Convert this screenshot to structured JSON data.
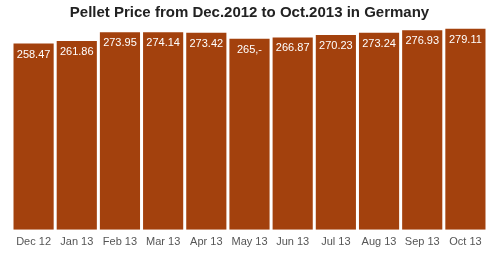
{
  "chart_data": {
    "type": "bar",
    "title": "Pellet Price from Dec.2012 to Oct.2013 in Germany",
    "categories": [
      "Dec 12",
      "Jan 13",
      "Feb 13",
      "Mar 13",
      "Apr 13",
      "May 13",
      "Jun 13",
      "Jul 13",
      "Aug 13",
      "Sep 13",
      "Oct 13"
    ],
    "values": [
      258.47,
      261.86,
      273.95,
      274.14,
      273.42,
      265,
      266.87,
      270.23,
      273.24,
      276.93,
      279.11
    ],
    "value_labels": [
      "258.47",
      "261.86",
      "273.95",
      "274.14",
      "273.42",
      "265,-",
      "266.87",
      "270.23",
      "273.24",
      "276.93",
      "279.11"
    ],
    "color": "#a3410d",
    "ylim": [
      0,
      280
    ],
    "grid": false,
    "data_labels": true,
    "tick_labels": "x"
  }
}
